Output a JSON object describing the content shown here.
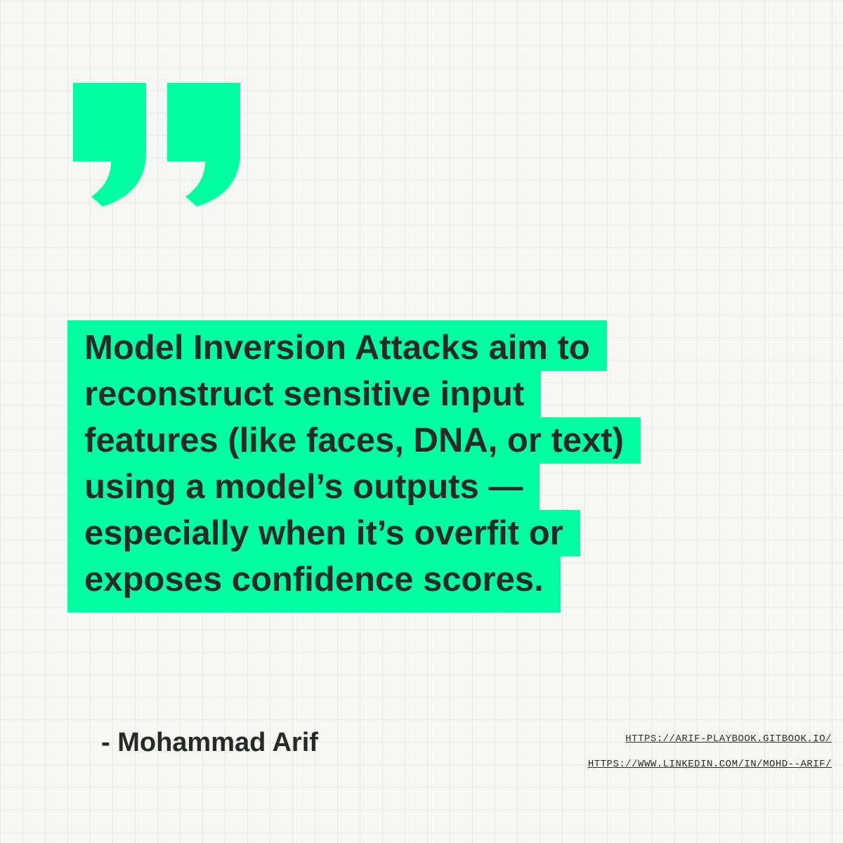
{
  "quote_mark": {
    "icon": "closing-quote-icon",
    "color": "#00ffa3"
  },
  "quote": {
    "highlight_color": "#00ffa3",
    "lines": [
      "Model Inversion Attacks aim to",
      "reconstruct sensitive input",
      "features (like faces, DNA, or text)",
      "using a model’s outputs —",
      "especially when it’s overfit or",
      "exposes confidence scores."
    ]
  },
  "author": "- Mohammad Arif",
  "links": [
    "HTTPS://ARIF-PLAYBOOK.GITBOOK.IO/",
    "HTTPS://WWW.LINKEDIN.COM/IN/MOHD--ARIF/"
  ]
}
